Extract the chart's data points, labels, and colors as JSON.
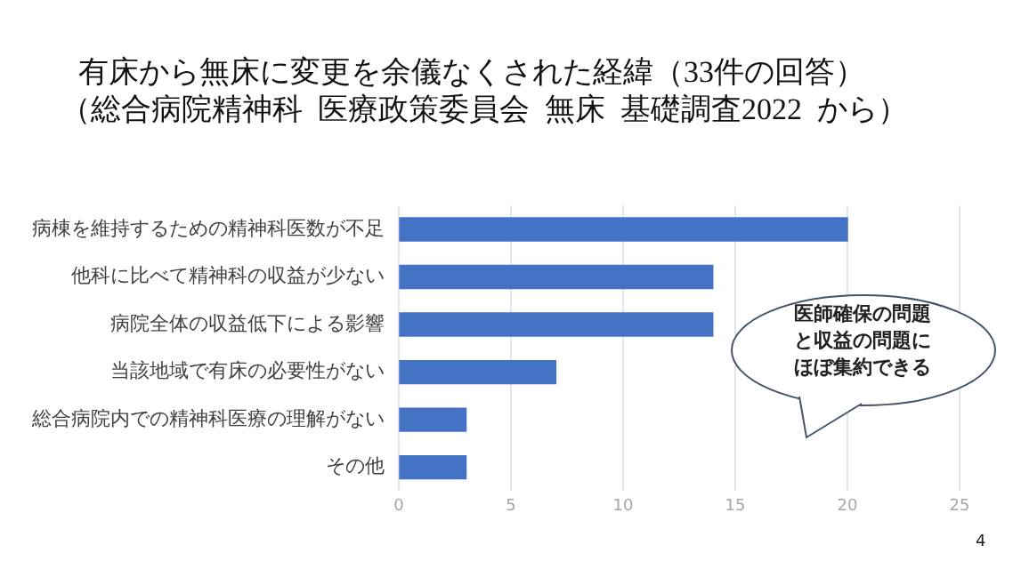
{
  "chart_data": {
    "type": "bar",
    "orientation": "horizontal",
    "title": "有床から無床に変更を余儀なくされた経緯（33件の回答）",
    "subtitle": "（総合病院精神科  医療政策委員会  無床  基礎調査2022  から）",
    "categories": [
      "病棟を維持するための精神科医数が不足",
      "他科に比べて精神科の収益が少ない",
      "病院全体の収益低下による影響",
      "当該地域で有床の必要性がない",
      "総合病院内での精神科医療の理解がない",
      "その他"
    ],
    "values": [
      20,
      14,
      14,
      7,
      3,
      3
    ],
    "color": "#4472c4",
    "xlim": [
      0,
      25
    ],
    "xticks": [
      0,
      5,
      10,
      15,
      20,
      25
    ],
    "grid": "x",
    "legend": false,
    "annotations": [
      "医師確保の問題と収益の問題にほぼ集約できる",
      "4"
    ]
  }
}
